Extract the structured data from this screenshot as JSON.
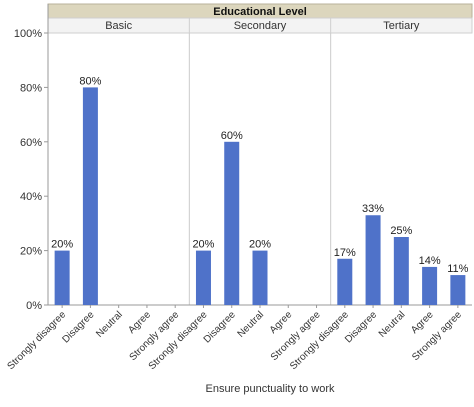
{
  "chart_data": {
    "type": "bar",
    "facet_title": "Educational Level",
    "facets": [
      "Basic",
      "Secondary",
      "Tertiary"
    ],
    "categories": [
      "Strongly disagree",
      "Disagree",
      "Neutral",
      "Agree",
      "Strongly agree"
    ],
    "series": [
      {
        "facet": "Basic",
        "values": [
          20,
          80,
          null,
          null,
          null
        ],
        "labels": [
          "20%",
          "80%",
          "",
          "",
          ""
        ]
      },
      {
        "facet": "Secondary",
        "values": [
          20,
          60,
          20,
          null,
          null
        ],
        "labels": [
          "20%",
          "60%",
          "20%",
          "",
          ""
        ]
      },
      {
        "facet": "Tertiary",
        "values": [
          17,
          33,
          25,
          14,
          11
        ],
        "labels": [
          "17%",
          "33%",
          "25%",
          "14%",
          "11%"
        ]
      }
    ],
    "xlabel": "Ensure punctuality to work",
    "ylabel": "",
    "ylim": [
      0,
      100
    ],
    "yticks": [
      0,
      20,
      40,
      60,
      80,
      100
    ],
    "ytick_labels": [
      "0%",
      "20%",
      "40%",
      "60%",
      "80%",
      "100%"
    ],
    "grid": false,
    "legend": "none",
    "colors": {
      "bar": "#4f72c9",
      "header_bg": "#dcd6bd",
      "axis": "#999999",
      "divider": "#cccccc",
      "text": "#333333"
    }
  }
}
